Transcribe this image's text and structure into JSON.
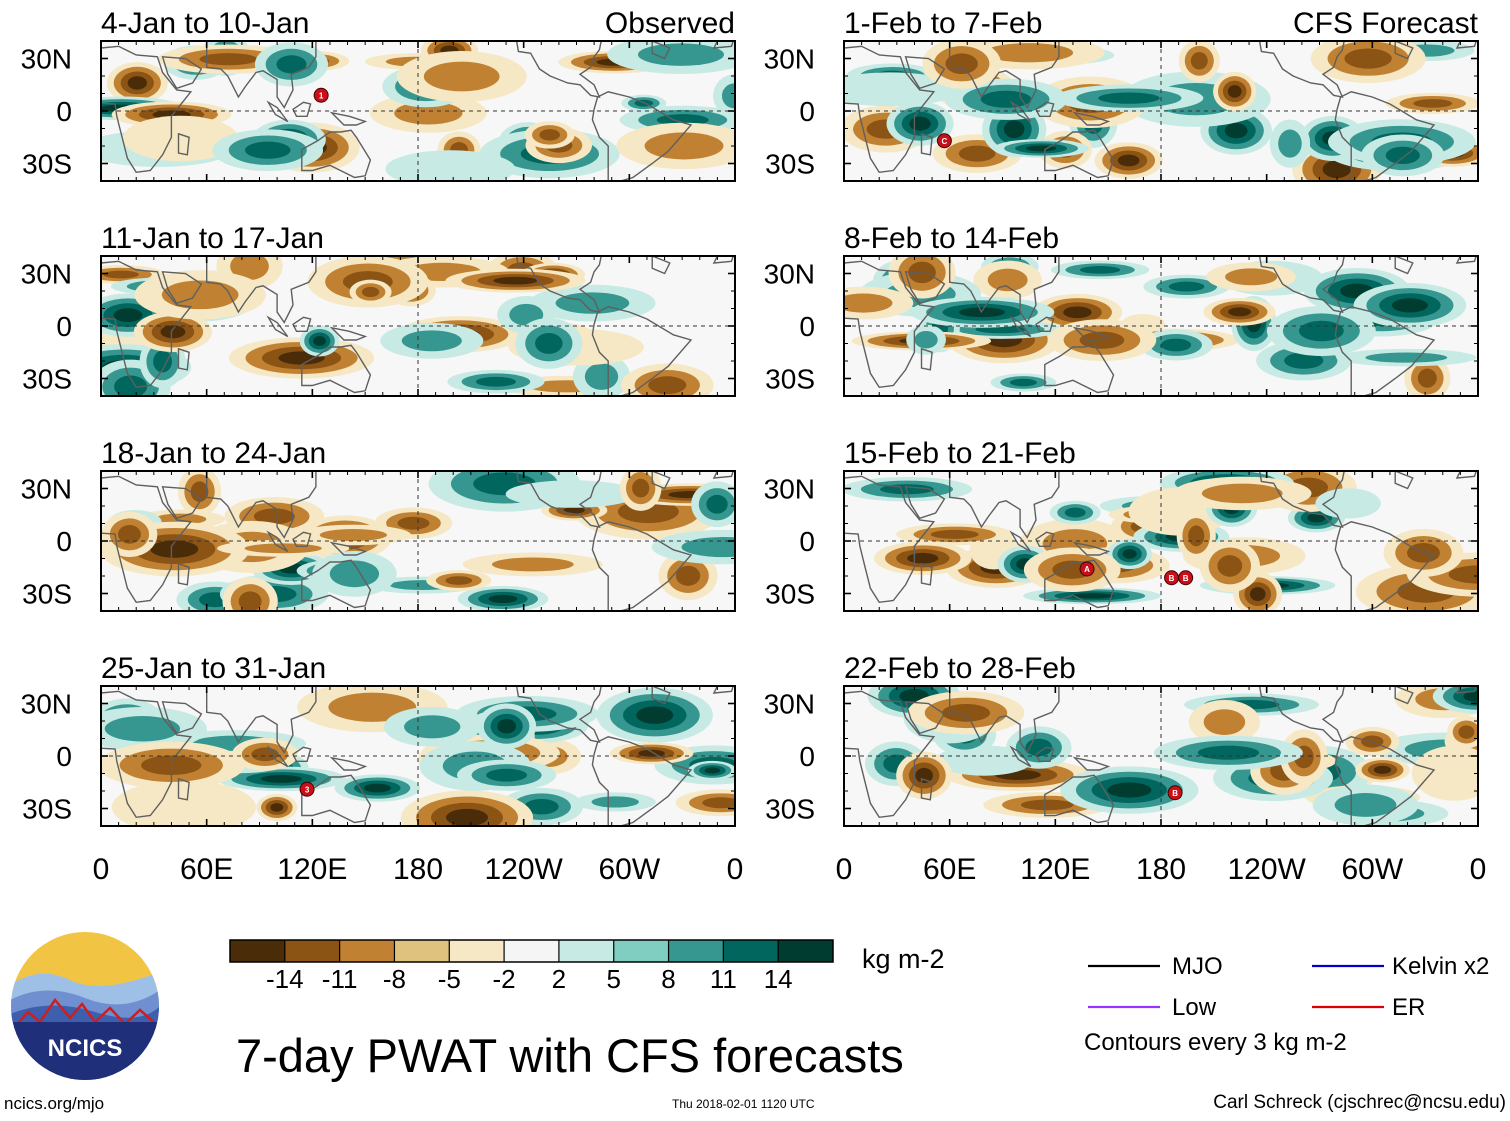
{
  "title": "7-day PWAT with CFS forecasts",
  "logo_text": "NCICS",
  "site": "ncics.org/mjo",
  "timestamp": "Thu 2018-02-01 1120 UTC",
  "credit": "Carl Schreck (cjschrec@ncsu.edu)",
  "colorbar": {
    "units": "kg m-2",
    "tick_labels": [
      "-14",
      "-11",
      "-8",
      "-5",
      "-2",
      "2",
      "5",
      "8",
      "11",
      "14"
    ],
    "colors": [
      "#4a2c09",
      "#8b5314",
      "#c08232",
      "#dfc27e",
      "#f6e8c4",
      "#f5f5f5",
      "#c7eae5",
      "#80cdc1",
      "#35978f",
      "#01665e",
      "#003c30"
    ]
  },
  "legend": {
    "items": [
      {
        "label": "MJO",
        "color": "#000000"
      },
      {
        "label": "Kelvin x2",
        "color": "#0000cc"
      },
      {
        "label": "Low",
        "color": "#9933ff"
      },
      {
        "label": "ER",
        "color": "#dd0000"
      }
    ],
    "note": "Contours every 3 kg m-2"
  },
  "columns": [
    {
      "label": "Observed"
    },
    {
      "label": "CFS Forecast"
    }
  ],
  "lat_labels": [
    "30N",
    "0",
    "30S"
  ],
  "lon_labels": [
    "0",
    "60E",
    "120E",
    "180",
    "120W",
    "60W",
    "0"
  ],
  "panels": [
    {
      "period": "4-Jan to 10-Jan",
      "col": 0,
      "row": 0,
      "storms": [
        {
          "id": "1",
          "lon": 125,
          "lat": 9
        }
      ]
    },
    {
      "period": "11-Jan to 17-Jan",
      "col": 0,
      "row": 1,
      "storms": []
    },
    {
      "period": "18-Jan to 24-Jan",
      "col": 0,
      "row": 2,
      "storms": []
    },
    {
      "period": "25-Jan to 31-Jan",
      "col": 0,
      "row": 3,
      "storms": [
        {
          "id": "3",
          "lon": 117,
          "lat": -19
        }
      ]
    },
    {
      "period": "1-Feb to 7-Feb",
      "col": 1,
      "row": 0,
      "storms": [
        {
          "id": "C",
          "lon": 57,
          "lat": -17
        }
      ]
    },
    {
      "period": "8-Feb to 14-Feb",
      "col": 1,
      "row": 1,
      "storms": []
    },
    {
      "period": "15-Feb to 21-Feb",
      "col": 1,
      "row": 2,
      "storms": [
        {
          "id": "A",
          "lon": 138,
          "lat": -16
        },
        {
          "id": "B",
          "lon": 186,
          "lat": -21
        },
        {
          "id": "B",
          "lon": 194,
          "lat": -21
        }
      ]
    },
    {
      "period": "22-Feb to 28-Feb",
      "col": 1,
      "row": 3,
      "storms": [
        {
          "id": "B",
          "lon": 188,
          "lat": -21
        }
      ]
    }
  ]
}
